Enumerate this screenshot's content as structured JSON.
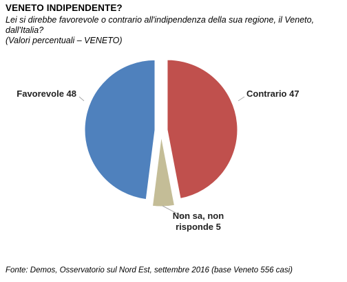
{
  "header": {
    "title": "VENETO INDIPENDENTE?",
    "subtitle_line1": "Lei si direbbe favorevole o contrario all'indipendenza della sua regione, il Veneto, dall'Italia?",
    "subtitle_line2": "(Valori percentuali – VENETO)"
  },
  "footer": {
    "source": "Fonte: Demos, Osservatorio sul Nord Est, settembre  2016 (base Veneto 556 casi)"
  },
  "chart_data": {
    "type": "pie",
    "title": "VENETO INDIPENDENTE?",
    "slices": [
      {
        "name": "Contrario",
        "value": 47,
        "color": "#C0504D",
        "label_lines": [
          "Contrario 47"
        ]
      },
      {
        "name": "Non sa, non risponde",
        "value": 5,
        "color": "#C4BD97",
        "label_lines": [
          "Non sa, non",
          "risponde 5"
        ]
      },
      {
        "name": "Favorevole",
        "value": 48,
        "color": "#4F81BD",
        "label_lines": [
          "Favorevole 48"
        ]
      }
    ],
    "legend": "none",
    "exploded": true
  }
}
